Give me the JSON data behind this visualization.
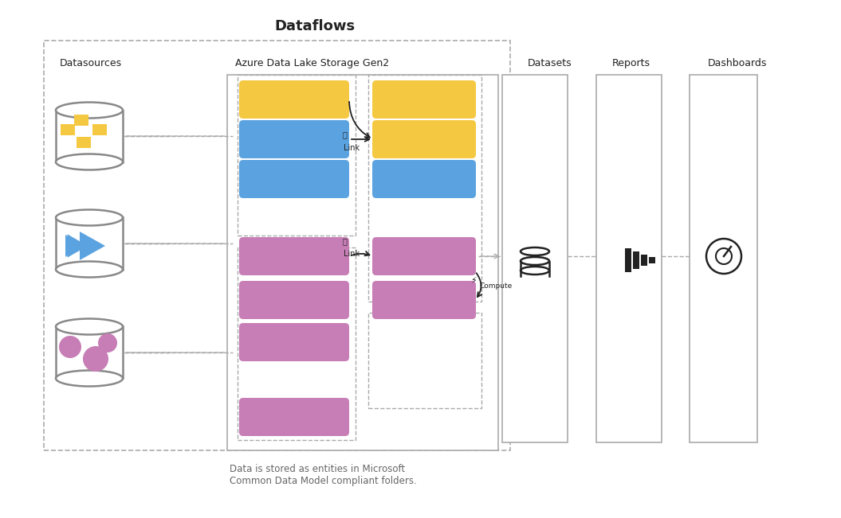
{
  "title": "Dataflows",
  "bg_color": "#ffffff",
  "datasources_label": "Datasources",
  "adls_label": "Azure Data Lake Storage Gen2",
  "datasets_label": "Datasets",
  "reports_label": "Reports",
  "dashboards_label": "Dashboards",
  "note_text": "Data is stored as entities in Microsoft\nCommon Data Model compliant folders.",
  "yellow": "#F5C842",
  "blue": "#5BA3E0",
  "pink": "#C77DB5",
  "gray": "#888888",
  "dark": "#222222",
  "dash_color": "#aaaaaa"
}
